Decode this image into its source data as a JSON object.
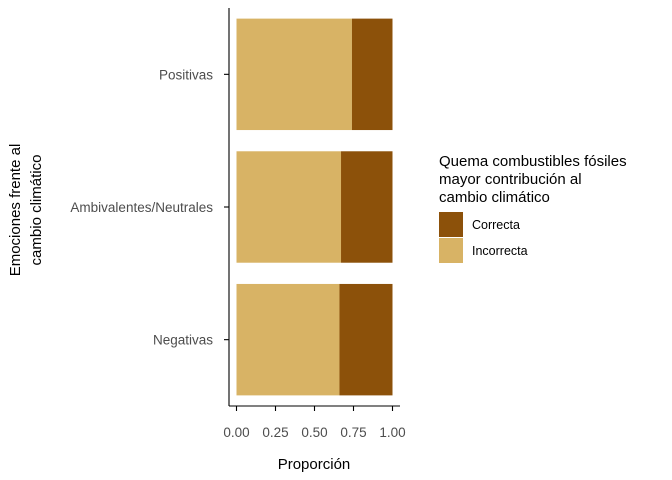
{
  "chart_data": {
    "type": "bar",
    "orientation": "horizontal",
    "stacked": true,
    "categories": [
      "Positivas",
      "Ambivalentes/Neutrales",
      "Negativas"
    ],
    "series": [
      {
        "name": "Incorrecta",
        "color": "#D8B365",
        "values": [
          0.74,
          0.67,
          0.66
        ]
      },
      {
        "name": "Correcta",
        "color": "#8C510A",
        "values": [
          0.26,
          0.33,
          0.34
        ]
      }
    ],
    "xlabel": "Proporción",
    "ylabel": [
      "Emociones frente al",
      "cambio climático"
    ],
    "xlim": [
      0,
      1
    ],
    "xticks": [
      "0.00",
      "0.25",
      "0.50",
      "0.75",
      "1.00"
    ],
    "grid": false,
    "legend": {
      "position": "right",
      "title": [
        "Quema combustibles fósiles",
        "mayor contribución al",
        "cambio climático"
      ],
      "entries": [
        {
          "label": "Correcta",
          "color": "#8C510A"
        },
        {
          "label": "Incorrecta",
          "color": "#D8B365"
        }
      ]
    }
  }
}
